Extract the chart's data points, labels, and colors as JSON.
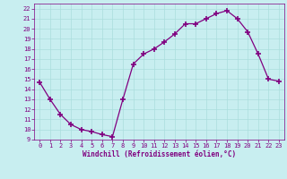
{
  "x": [
    0,
    1,
    2,
    3,
    4,
    5,
    6,
    7,
    8,
    9,
    10,
    11,
    12,
    13,
    14,
    15,
    16,
    17,
    18,
    19,
    20,
    21,
    22,
    23
  ],
  "y": [
    14.7,
    13.0,
    11.5,
    10.5,
    10.0,
    9.8,
    9.5,
    9.3,
    13.0,
    16.5,
    17.5,
    18.0,
    18.7,
    19.5,
    20.5,
    20.5,
    21.0,
    21.5,
    21.8,
    21.0,
    19.7,
    17.5,
    15.0,
    14.8
  ],
  "line_color": "#800080",
  "marker": "+",
  "marker_size": 4,
  "background_color": "#c8eef0",
  "grid_color": "#aadddd",
  "xlabel": "Windchill (Refroidissement éolien,°C)",
  "xlabel_color": "#800080",
  "tick_color": "#800080",
  "xlim": [
    -0.5,
    23.5
  ],
  "ylim": [
    9,
    22.5
  ],
  "yticks": [
    9,
    10,
    11,
    12,
    13,
    14,
    15,
    16,
    17,
    18,
    19,
    20,
    21,
    22
  ],
  "xticks": [
    0,
    1,
    2,
    3,
    4,
    5,
    6,
    7,
    8,
    9,
    10,
    11,
    12,
    13,
    14,
    15,
    16,
    17,
    18,
    19,
    20,
    21,
    22,
    23
  ]
}
